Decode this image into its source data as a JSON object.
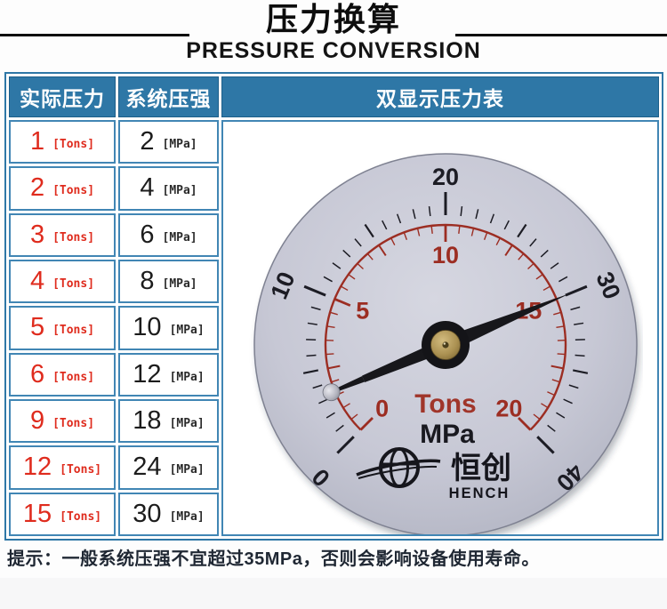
{
  "header": {
    "title_zh": "压力换算",
    "title_en": "PRESSURE CONVERSION"
  },
  "table": {
    "col1_header": "实际压力",
    "col2_header": "系统压强",
    "col3_header": "双显示压力表",
    "unit_tons": "[Tons]",
    "unit_mpa": "[MPa]",
    "rows": [
      {
        "tons": "1",
        "mpa": "2"
      },
      {
        "tons": "2",
        "mpa": "4"
      },
      {
        "tons": "3",
        "mpa": "6"
      },
      {
        "tons": "4",
        "mpa": "8"
      },
      {
        "tons": "5",
        "mpa": "10"
      },
      {
        "tons": "6",
        "mpa": "12"
      },
      {
        "tons": "9",
        "mpa": "18"
      },
      {
        "tons": "12",
        "mpa": "24"
      },
      {
        "tons": "15",
        "mpa": "30"
      }
    ]
  },
  "gauge": {
    "type": "dial-gauge",
    "outer_scale": {
      "unit": "MPa",
      "min": 0,
      "max": 40,
      "labels": [
        0,
        10,
        20,
        30,
        40
      ],
      "color": "#1c1c24"
    },
    "inner_scale": {
      "unit": "Tons",
      "min": 0,
      "max": 20,
      "labels": [
        0,
        5,
        10,
        15,
        20
      ],
      "color": "#9c2d22"
    },
    "needle": {
      "tons": 15,
      "mpa": 30
    },
    "face_text_primary": "Tons",
    "face_text_secondary": "MPa",
    "brand_zh": "恒创",
    "brand_en": "HENCH",
    "sweep_deg": 270,
    "colors": {
      "face": "#c6c7d4",
      "needle": "#17171b",
      "hub_brass": "#b59a58",
      "red": "#9c2d22",
      "black": "#1c1c24"
    }
  },
  "tip": "提示：一般系统压强不宜超过35MPa，否则会影响设备使用寿命。",
  "accent_colors": {
    "header_blue": "#2e77a6",
    "cell_border_blue": "#4186b4",
    "value_red": "#df2b1d"
  }
}
